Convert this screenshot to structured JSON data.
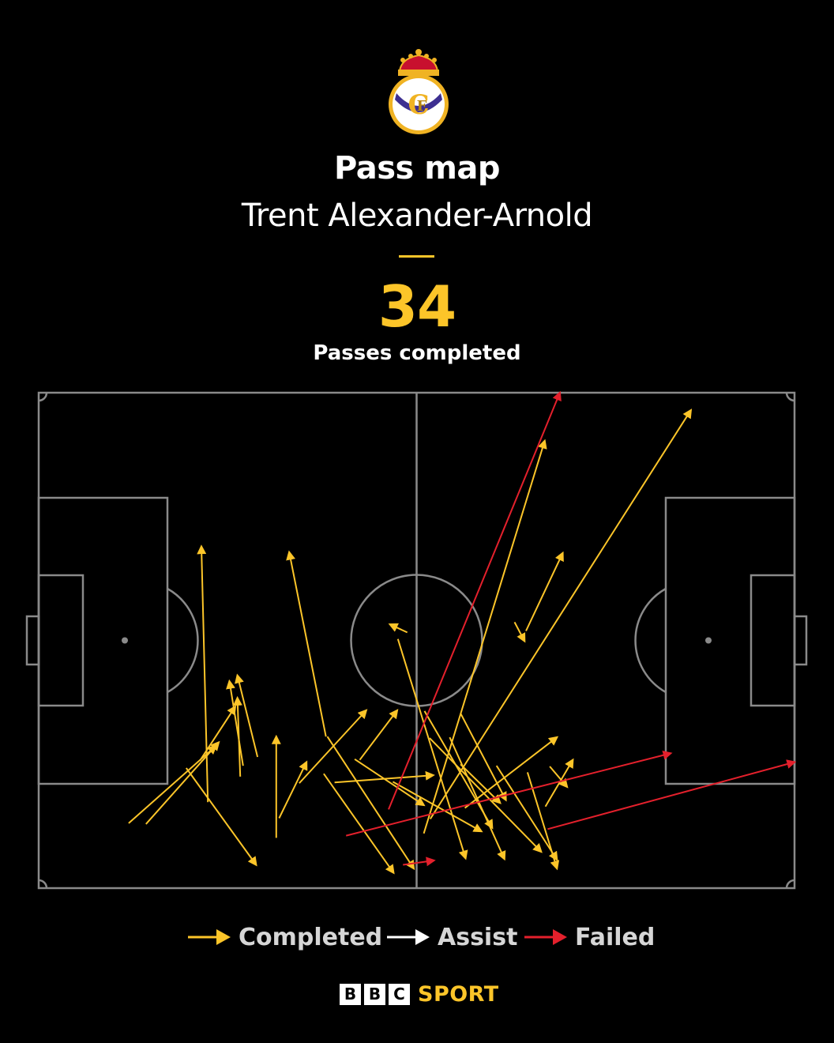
{
  "header": {
    "title": "Pass map",
    "player": "Trent Alexander-Arnold",
    "count": "34",
    "count_label": "Passes completed"
  },
  "crest": {
    "icon": "real-madrid-crest-icon"
  },
  "colors": {
    "background": "#000000",
    "completed": "#fcc529",
    "assist": "#ffffff",
    "failed": "#e4202c",
    "pitch_lines": "#8a8a8a"
  },
  "legend": {
    "completed": "Completed",
    "assist": "Assist",
    "failed": "Failed"
  },
  "brand": {
    "b1": "B",
    "b2": "B",
    "c": "C",
    "sport": "SPORT"
  },
  "chart_data": {
    "type": "scatter",
    "pitch": {
      "length": 105,
      "width": 68,
      "attacking_direction": "left-to-right"
    },
    "passes": [
      {
        "x1": 12.5,
        "y1": 59.1,
        "x2": 24.6,
        "y2": 48.5,
        "outcome": "completed"
      },
      {
        "x1": 14.9,
        "y1": 59.2,
        "x2": 25.0,
        "y2": 48.0,
        "outcome": "completed"
      },
      {
        "x1": 23.5,
        "y1": 56.2,
        "x2": 22.6,
        "y2": 21.1,
        "outcome": "completed"
      },
      {
        "x1": 20.5,
        "y1": 51.5,
        "x2": 30.2,
        "y2": 64.8,
        "outcome": "completed"
      },
      {
        "x1": 22.4,
        "y1": 50.5,
        "x2": 27.3,
        "y2": 43.1,
        "outcome": "completed"
      },
      {
        "x1": 28.4,
        "y1": 51.2,
        "x2": 26.5,
        "y2": 39.6,
        "outcome": "completed"
      },
      {
        "x1": 28.0,
        "y1": 52.7,
        "x2": 27.6,
        "y2": 41.9,
        "outcome": "completed"
      },
      {
        "x1": 30.4,
        "y1": 50.0,
        "x2": 27.6,
        "y2": 38.8,
        "outcome": "completed"
      },
      {
        "x1": 33.0,
        "y1": 61.1,
        "x2": 33.0,
        "y2": 47.2,
        "outcome": "completed"
      },
      {
        "x1": 33.4,
        "y1": 58.4,
        "x2": 37.2,
        "y2": 50.7,
        "outcome": "completed"
      },
      {
        "x1": 39.9,
        "y1": 47.2,
        "x2": 34.8,
        "y2": 21.9,
        "outcome": "completed"
      },
      {
        "x1": 36.2,
        "y1": 53.6,
        "x2": 45.5,
        "y2": 43.6,
        "outcome": "completed"
      },
      {
        "x1": 39.6,
        "y1": 52.3,
        "x2": 49.3,
        "y2": 65.9,
        "outcome": "completed"
      },
      {
        "x1": 40.1,
        "y1": 47.2,
        "x2": 52.1,
        "y2": 65.3,
        "outcome": "completed"
      },
      {
        "x1": 41.1,
        "y1": 53.5,
        "x2": 54.8,
        "y2": 52.5,
        "outcome": "completed"
      },
      {
        "x1": 43.9,
        "y1": 50.3,
        "x2": 53.5,
        "y2": 56.6,
        "outcome": "completed"
      },
      {
        "x1": 44.6,
        "y1": 50.4,
        "x2": 49.8,
        "y2": 43.6,
        "outcome": "completed"
      },
      {
        "x1": 49.2,
        "y1": 53.4,
        "x2": 61.5,
        "y2": 60.2,
        "outcome": "completed"
      },
      {
        "x1": 51.2,
        "y1": 32.9,
        "x2": 48.8,
        "y2": 31.8,
        "outcome": "completed"
      },
      {
        "x1": 49.9,
        "y1": 33.8,
        "x2": 59.3,
        "y2": 63.9,
        "outcome": "completed"
      },
      {
        "x1": 53.6,
        "y1": 43.7,
        "x2": 63.0,
        "y2": 59.7,
        "outcome": "completed"
      },
      {
        "x1": 53.5,
        "y1": 60.5,
        "x2": 70.3,
        "y2": 6.6,
        "outcome": "completed"
      },
      {
        "x1": 54.4,
        "y1": 58.5,
        "x2": 90.6,
        "y2": 2.4,
        "outcome": "completed"
      },
      {
        "x1": 57.1,
        "y1": 47.3,
        "x2": 64.7,
        "y2": 64.0,
        "outcome": "completed"
      },
      {
        "x1": 58.6,
        "y1": 51.0,
        "x2": 64.1,
        "y2": 56.3,
        "outcome": "completed"
      },
      {
        "x1": 54.3,
        "y1": 47.4,
        "x2": 69.8,
        "y2": 63.0,
        "outcome": "completed"
      },
      {
        "x1": 58.6,
        "y1": 44.0,
        "x2": 64.9,
        "y2": 55.9,
        "outcome": "completed"
      },
      {
        "x1": 59.2,
        "y1": 57.0,
        "x2": 72.0,
        "y2": 47.3,
        "outcome": "completed"
      },
      {
        "x1": 63.6,
        "y1": 51.2,
        "x2": 72.0,
        "y2": 64.1,
        "outcome": "completed"
      },
      {
        "x1": 70.4,
        "y1": 56.8,
        "x2": 74.2,
        "y2": 50.4,
        "outcome": "completed"
      },
      {
        "x1": 67.7,
        "y1": 32.7,
        "x2": 72.8,
        "y2": 22.0,
        "outcome": "completed"
      },
      {
        "x1": 66.1,
        "y1": 31.5,
        "x2": 67.5,
        "y2": 34.1,
        "outcome": "completed"
      },
      {
        "x1": 67.9,
        "y1": 52.1,
        "x2": 72.0,
        "y2": 65.3,
        "outcome": "completed"
      },
      {
        "x1": 71.0,
        "y1": 51.3,
        "x2": 73.4,
        "y2": 54.1,
        "outcome": "completed"
      },
      {
        "x1": 48.6,
        "y1": 57.2,
        "x2": 72.4,
        "y2": 0.0,
        "outcome": "failed"
      },
      {
        "x1": 42.7,
        "y1": 60.8,
        "x2": 87.8,
        "y2": 49.5,
        "outcome": "failed"
      },
      {
        "x1": 70.7,
        "y1": 59.9,
        "x2": 105.0,
        "y2": 50.7,
        "outcome": "failed"
      },
      {
        "x1": 50.6,
        "y1": 64.8,
        "x2": 54.9,
        "y2": 64.2,
        "outcome": "failed"
      }
    ]
  }
}
